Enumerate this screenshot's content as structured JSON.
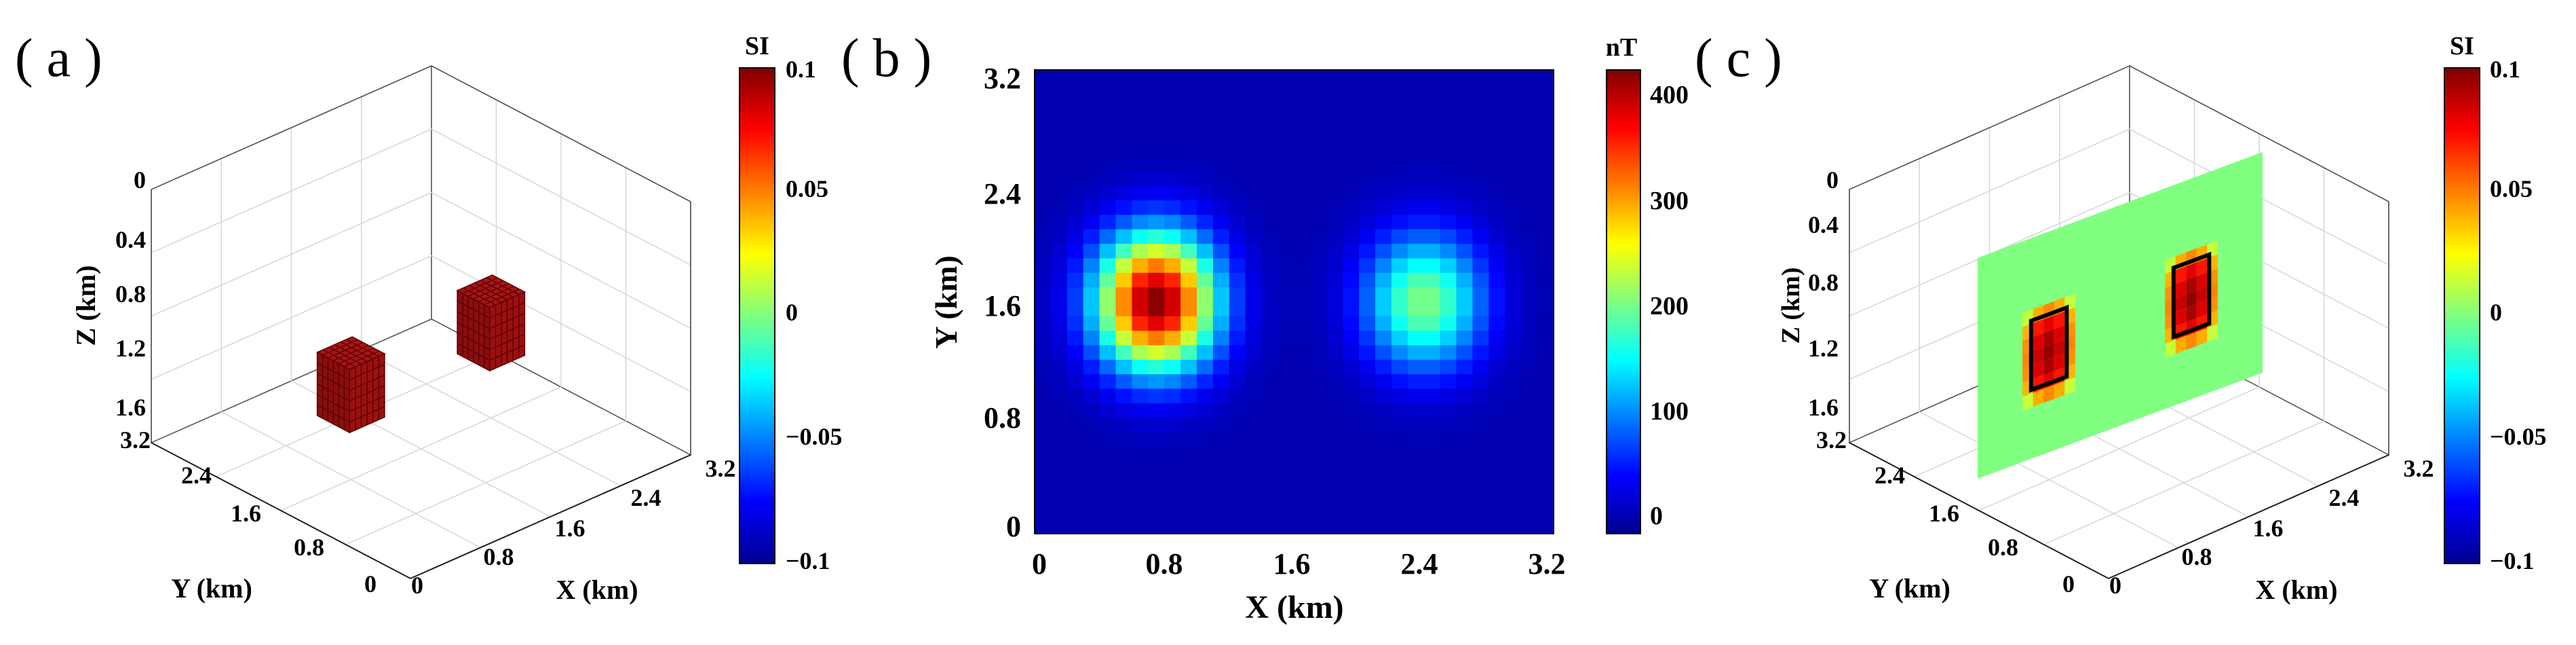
{
  "chart_data": [
    {
      "panel": "( a )",
      "type": "3d-voxel",
      "xlabel": "X (km)",
      "ylabel": "Y (km)",
      "zlabel": "Z (km)",
      "x_ticks": [
        "0",
        "0.8",
        "1.6",
        "2.4",
        "3.2"
      ],
      "y_ticks": [
        "0",
        "0.8",
        "1.6",
        "2.4",
        "3.2"
      ],
      "z_ticks": [
        "0",
        "0.4",
        "0.8",
        "1.2",
        "1.6"
      ],
      "xlim": [
        0,
        3.2
      ],
      "ylim": [
        0,
        3.2
      ],
      "zlim": [
        0,
        1.6
      ],
      "z_reversed": true,
      "colorbar": {
        "unit": "SI",
        "ticks": [
          "0.1",
          "0.05",
          "0",
          "−0.05",
          "−0.1"
        ],
        "range": [
          -0.1,
          0.1
        ]
      },
      "bodies": [
        {
          "x": [
            0.6,
            1.0
          ],
          "y": [
            1.4,
            1.8
          ],
          "z": [
            0.8,
            1.2
          ],
          "value": 0.1
        },
        {
          "x": [
            2.2,
            2.6
          ],
          "y": [
            1.4,
            1.8
          ],
          "z": [
            0.8,
            1.2
          ],
          "value": 0.1
        }
      ],
      "color": "#9b1010"
    },
    {
      "panel": "( b )",
      "type": "heatmap",
      "xlabel": "X (km)",
      "ylabel": "Y (km)",
      "x_ticks": [
        "0",
        "0.8",
        "1.6",
        "2.4",
        "3.2"
      ],
      "y_ticks": [
        "0",
        "0.8",
        "1.6",
        "2.4",
        "3.2"
      ],
      "xlim": [
        0,
        3.2
      ],
      "ylim": [
        0,
        3.2
      ],
      "colorbar": {
        "unit": "nT",
        "ticks": [
          "400",
          "300",
          "200",
          "100",
          "0"
        ],
        "range": [
          -20,
          420
        ]
      },
      "grid_size": 32,
      "anomalies": [
        {
          "x": 0.75,
          "y": 1.6,
          "peak": 420
        },
        {
          "x": 2.4,
          "y": 1.6,
          "peak": 200
        }
      ]
    },
    {
      "panel": "( c )",
      "type": "3d-slice",
      "xlabel": "X (km)",
      "ylabel": "Y (km)",
      "zlabel": "Z (km)",
      "x_ticks": [
        "0",
        "0.8",
        "1.6",
        "2.4",
        "3.2"
      ],
      "y_ticks": [
        "0",
        "0.8",
        "1.6",
        "2.4",
        "3.2"
      ],
      "z_ticks": [
        "0",
        "0.4",
        "0.8",
        "1.2",
        "1.6"
      ],
      "xlim": [
        0,
        3.2
      ],
      "ylim": [
        0,
        3.2
      ],
      "zlim": [
        0,
        1.6
      ],
      "z_reversed": true,
      "colorbar": {
        "unit": "SI",
        "ticks": [
          "0.1",
          "0.05",
          "0",
          "−0.05",
          "−0.1"
        ],
        "range": [
          -0.1,
          0.1
        ]
      },
      "slice_plane": "y = 1.6 km",
      "background_value": 0,
      "recovered_bodies": [
        {
          "x": [
            0.6,
            1.0
          ],
          "z": [
            0.8,
            1.2
          ],
          "value": 0.1
        },
        {
          "x": [
            2.2,
            2.6
          ],
          "z": [
            0.8,
            1.2
          ],
          "value": 0.1
        }
      ]
    }
  ]
}
